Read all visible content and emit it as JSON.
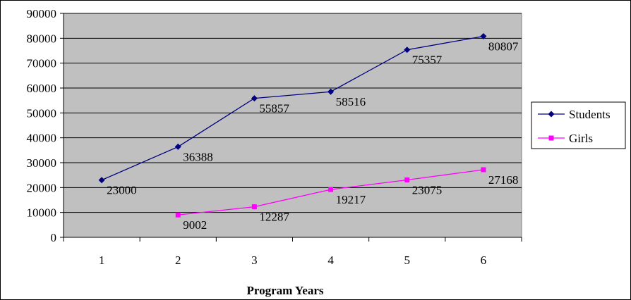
{
  "chart_data": {
    "type": "line",
    "title": "",
    "xlabel": "Program Years",
    "ylabel": "",
    "categories": [
      "1",
      "2",
      "3",
      "4",
      "5",
      "6"
    ],
    "ylim": [
      0,
      90000
    ],
    "yticks": [
      "0",
      "10000",
      "20000",
      "30000",
      "40000",
      "50000",
      "60000",
      "70000",
      "80000",
      "90000"
    ],
    "grid": "horizontal",
    "legend_position": "right",
    "plot_background": "#c0c0c0",
    "series": [
      {
        "name": "Students",
        "color": "#000080",
        "marker": "diamond",
        "values": [
          23000,
          36388,
          55857,
          58516,
          75357,
          80807
        ],
        "labels": [
          "23000",
          "36388",
          "55857",
          "58516",
          "75357",
          "80807"
        ]
      },
      {
        "name": "Girls",
        "color": "#ff00ff",
        "marker": "square",
        "values": [
          null,
          9002,
          12287,
          19217,
          23075,
          27168
        ],
        "labels": [
          "",
          "9002",
          "12287",
          "19217",
          "23075",
          "27168"
        ]
      }
    ]
  }
}
